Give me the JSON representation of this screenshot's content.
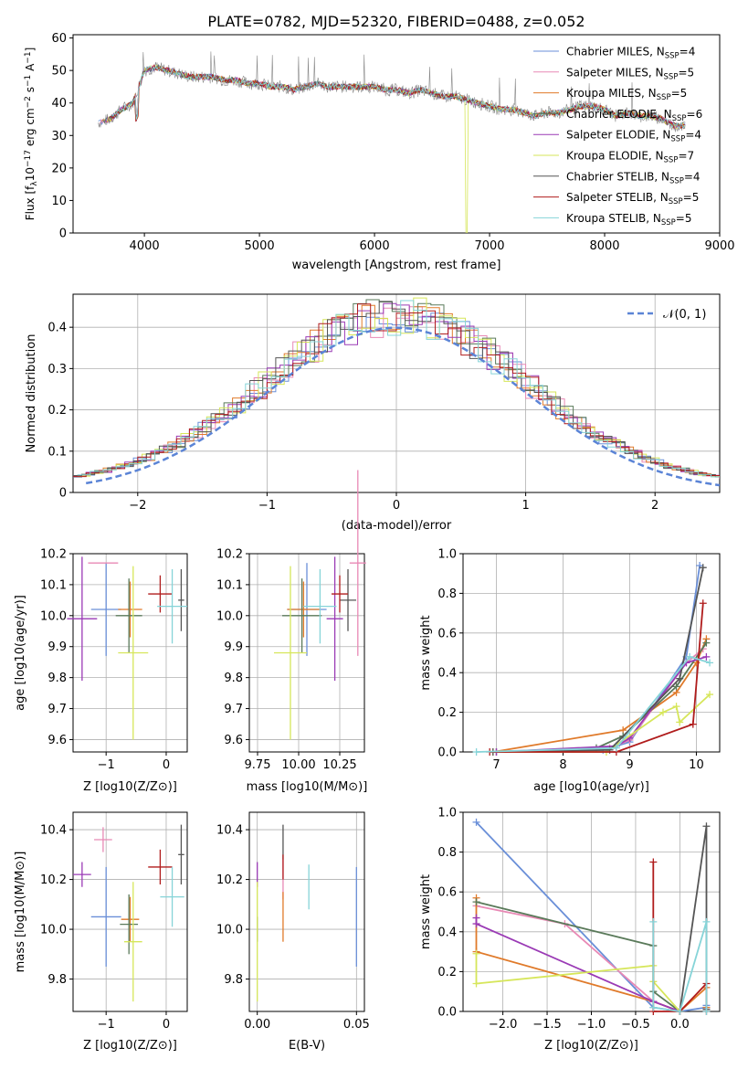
{
  "figure": {
    "title": "PLATE=0782, MJD=52320, FIBERID=0488, z=0.052",
    "colors": {
      "chabrier_miles": "#6a8fd8",
      "salpeter_miles": "#e889b5",
      "kroupa_miles": "#e07a2a",
      "chabrier_elodie": "#5a7a5a",
      "salpeter_elodie": "#9a3ab5",
      "kroupa_elodie": "#d6e65a",
      "chabrier_stelib": "#555555",
      "salpeter_stelib": "#b01c1c",
      "kroupa_stelib": "#86d4d8",
      "normal": "#5b84d6"
    }
  },
  "chart_data": [
    {
      "id": "spectrum",
      "type": "line",
      "title": "PLATE=0782, MJD=52320, FIBERID=0488, z=0.052",
      "xlabel": "wavelength [Angstrom, rest frame]",
      "ylabel": "Flux [f_λ10^-17 erg cm^-2 s^-1 A^-1]",
      "xlim": [
        3380,
        9000
      ],
      "ylim": [
        0,
        61
      ],
      "xticks": [
        4000,
        5000,
        6000,
        7000,
        8000,
        9000
      ],
      "yticks": [
        0,
        10,
        20,
        30,
        40,
        50,
        60
      ],
      "legend_position": "top-right",
      "grid": false,
      "series": [
        {
          "name": "Chabrier MILES, N_SSP=4",
          "key": "chabrier_miles"
        },
        {
          "name": "Salpeter MILES, N_SSP=5",
          "key": "salpeter_miles"
        },
        {
          "name": "Kroupa MILES, N_SSP=5",
          "key": "kroupa_miles"
        },
        {
          "name": "Chabrier ELODIE, N_SSP=6",
          "key": "chabrier_elodie"
        },
        {
          "name": "Salpeter ELODIE, N_SSP=4",
          "key": "salpeter_elodie"
        },
        {
          "name": "Kroupa ELODIE, N_SSP=7",
          "key": "kroupa_elodie"
        },
        {
          "name": "Chabrier STELIB, N_SSP=4",
          "key": "chabrier_stelib"
        },
        {
          "name": "Salpeter STELIB, N_SSP=5",
          "key": "salpeter_stelib"
        },
        {
          "name": "Kroupa STELIB, N_SSP=5",
          "key": "kroupa_stelib"
        }
      ],
      "observed_envelope": {
        "x": [
          3600,
          3700,
          3800,
          3900,
          4000,
          4100,
          4200,
          4300,
          4400,
          4500,
          4600,
          4700,
          4800,
          4900,
          5000,
          5100,
          5200,
          5300,
          5400,
          5500,
          5600,
          5700,
          5800,
          5900,
          6000,
          6100,
          6200,
          6300,
          6400,
          6500,
          6600,
          6700,
          6800,
          6900,
          7000,
          7100,
          7200,
          7300,
          7400,
          7500,
          7600,
          7700,
          7800,
          7900,
          8000,
          8100,
          8200,
          8300,
          8400,
          8500,
          8600,
          8700
        ],
        "y": [
          34,
          35,
          38,
          40,
          50,
          51,
          50,
          49,
          48,
          48,
          48,
          47,
          47,
          46,
          46,
          45,
          45,
          44,
          45,
          46,
          45,
          45,
          45,
          45,
          45,
          44,
          44,
          43,
          44,
          43,
          42,
          42,
          41,
          40,
          39,
          38,
          38,
          37,
          36,
          37,
          37,
          38,
          39,
          39,
          38,
          36,
          37,
          36,
          36,
          35,
          33,
          33
        ]
      }
    },
    {
      "id": "residuals",
      "type": "line",
      "xlabel": "(data-model)/error",
      "ylabel": "Normed distribution",
      "xlim": [
        -2.5,
        2.5
      ],
      "ylim": [
        0,
        0.48
      ],
      "xticks": [
        -2,
        -1,
        0,
        1,
        2
      ],
      "yticks": [
        0.0,
        0.1,
        0.2,
        0.3,
        0.4
      ],
      "legend_position": "top-right",
      "grid": true,
      "reference": {
        "name": "𝒩(0, 1)",
        "mean": 0,
        "sigma": 1
      },
      "histogram_bin_width": 0.1
    },
    {
      "id": "age_vs_z",
      "type": "scatter",
      "xlabel": "Z [log10(Z/Z⊙)]",
      "ylabel": "age [log10(age/yr)]",
      "xlim": [
        -1.55,
        0.35
      ],
      "ylim": [
        9.56,
        10.2
      ],
      "xticks": [
        -1,
        0
      ],
      "yticks": [
        9.6,
        9.7,
        9.8,
        9.9,
        10.0,
        10.1,
        10.2
      ],
      "grid": true,
      "points": [
        {
          "key": "chabrier_miles",
          "x": -1.0,
          "xerr": 0.25,
          "y": 10.02,
          "yerr": 0.15
        },
        {
          "key": "salpeter_miles",
          "x": -1.05,
          "xerr": 0.25,
          "y": 10.17,
          "yerr": 0.0
        },
        {
          "key": "kroupa_miles",
          "x": -0.6,
          "xerr": 0.2,
          "y": 10.02,
          "yerr": 0.09
        },
        {
          "key": "chabrier_elodie",
          "x": -0.62,
          "xerr": 0.22,
          "y": 10.0,
          "yerr": 0.12
        },
        {
          "key": "salpeter_elodie",
          "x": -1.4,
          "xerr": 0.25,
          "y": 9.99,
          "yerr": 0.2
        },
        {
          "key": "kroupa_elodie",
          "x": -0.55,
          "xerr": 0.25,
          "y": 9.88,
          "yerr": 0.28
        },
        {
          "key": "chabrier_stelib",
          "x": 0.25,
          "xerr": 0.05,
          "y": 10.05,
          "yerr": 0.1
        },
        {
          "key": "salpeter_stelib",
          "x": -0.1,
          "xerr": 0.2,
          "y": 10.07,
          "yerr": 0.06
        },
        {
          "key": "kroupa_stelib",
          "x": 0.1,
          "xerr": 0.25,
          "y": 10.03,
          "yerr": 0.12
        }
      ]
    },
    {
      "id": "age_vs_mass",
      "type": "scatter",
      "xlabel": "mass [log10(M/M⊙)]",
      "ylabel": "",
      "xlim": [
        9.7,
        10.4
      ],
      "ylim": [
        9.56,
        10.2
      ],
      "xticks": [
        9.75,
        10.0,
        10.25
      ],
      "xticklabels": [
        "9.75",
        "10.00",
        "10.25"
      ],
      "yticks": [
        9.6,
        9.7,
        9.8,
        9.9,
        10.0,
        10.1,
        10.2
      ],
      "grid": true,
      "points": [
        {
          "key": "chabrier_miles",
          "x": 10.05,
          "xerr": 0.12,
          "y": 10.02,
          "yerr": 0.15
        },
        {
          "key": "salpeter_miles",
          "x": 10.36,
          "xerr": 0.05,
          "y": 10.17,
          "yerr": 0.3
        },
        {
          "key": "kroupa_miles",
          "x": 10.03,
          "xerr": 0.1,
          "y": 10.02,
          "yerr": 0.09
        },
        {
          "key": "chabrier_elodie",
          "x": 10.02,
          "xerr": 0.12,
          "y": 10.0,
          "yerr": 0.12
        },
        {
          "key": "salpeter_elodie",
          "x": 10.22,
          "xerr": 0.05,
          "y": 9.99,
          "yerr": 0.2
        },
        {
          "key": "kroupa_elodie",
          "x": 9.95,
          "xerr": 0.1,
          "y": 9.88,
          "yerr": 0.28
        },
        {
          "key": "chabrier_stelib",
          "x": 10.3,
          "xerr": 0.05,
          "y": 10.05,
          "yerr": 0.1
        },
        {
          "key": "salpeter_stelib",
          "x": 10.25,
          "xerr": 0.05,
          "y": 10.07,
          "yerr": 0.06
        },
        {
          "key": "kroupa_stelib",
          "x": 10.13,
          "xerr": 0.1,
          "y": 10.03,
          "yerr": 0.12
        }
      ]
    },
    {
      "id": "weight_vs_age",
      "type": "line",
      "xlabel": "age [log10(age/yr)]",
      "ylabel": "mass weight",
      "xlim": [
        6.5,
        10.35
      ],
      "ylim": [
        0,
        1
      ],
      "xticks": [
        7,
        8,
        9,
        10
      ],
      "yticks": [
        0.0,
        0.2,
        0.4,
        0.6,
        0.8,
        1.0
      ],
      "grid": true,
      "series": [
        {
          "key": "chabrier_miles",
          "x": [
            6.95,
            8.6,
            9.0,
            9.85,
            10.05
          ],
          "y": [
            0.0,
            0.01,
            0.05,
            0.48,
            0.94
          ]
        },
        {
          "key": "salpeter_miles",
          "x": [
            7.0,
            8.7,
            9.0,
            9.85,
            10.1
          ],
          "y": [
            0.0,
            0.02,
            0.06,
            0.45,
            0.52
          ]
        },
        {
          "key": "kroupa_miles",
          "x": [
            6.95,
            8.9,
            9.7,
            10.0,
            10.15
          ],
          "y": [
            0.0,
            0.11,
            0.3,
            0.45,
            0.57
          ]
        },
        {
          "key": "chabrier_elodie",
          "x": [
            7.0,
            8.5,
            8.9,
            9.7,
            10.15
          ],
          "y": [
            0.0,
            0.02,
            0.08,
            0.33,
            0.55
          ]
        },
        {
          "key": "salpeter_elodie",
          "x": [
            7.0,
            8.8,
            9.0,
            9.85,
            10.15
          ],
          "y": [
            0.0,
            0.03,
            0.07,
            0.45,
            0.48
          ]
        },
        {
          "key": "kroupa_elodie",
          "x": [
            6.95,
            8.65,
            9.5,
            9.7,
            9.75,
            10.2
          ],
          "y": [
            0.0,
            0.0,
            0.2,
            0.23,
            0.15,
            0.29
          ]
        },
        {
          "key": "chabrier_stelib",
          "x": [
            6.95,
            8.7,
            9.75,
            10.1
          ],
          "y": [
            0.0,
            0.01,
            0.37,
            0.93
          ]
        },
        {
          "key": "salpeter_stelib",
          "x": [
            6.9,
            8.8,
            9.95,
            10.1
          ],
          "y": [
            0.0,
            0.0,
            0.14,
            0.75
          ]
        },
        {
          "key": "kroupa_stelib",
          "x": [
            6.7,
            8.8,
            9.9,
            10.2
          ],
          "y": [
            0.0,
            0.02,
            0.48,
            0.45
          ]
        }
      ]
    },
    {
      "id": "mass_vs_z",
      "type": "scatter",
      "xlabel": "Z [log10(Z/Z⊙)]",
      "ylabel": "mass [log10(M/M⊙)]",
      "xlim": [
        -1.55,
        0.35
      ],
      "ylim": [
        9.67,
        10.47
      ],
      "xticks": [
        -1,
        0
      ],
      "yticks": [
        9.8,
        10.0,
        10.2,
        10.4
      ],
      "grid": true,
      "points": [
        {
          "key": "chabrier_miles",
          "x": -1.0,
          "xerr": 0.25,
          "y": 10.05,
          "yerr": 0.2
        },
        {
          "key": "salpeter_miles",
          "x": -1.05,
          "xerr": 0.15,
          "y": 10.36,
          "yerr": 0.05
        },
        {
          "key": "kroupa_miles",
          "x": -0.6,
          "xerr": 0.15,
          "y": 10.04,
          "yerr": 0.09
        },
        {
          "key": "chabrier_elodie",
          "x": -0.62,
          "xerr": 0.15,
          "y": 10.02,
          "yerr": 0.12
        },
        {
          "key": "salpeter_elodie",
          "x": -1.4,
          "xerr": 0.15,
          "y": 10.22,
          "yerr": 0.05
        },
        {
          "key": "kroupa_elodie",
          "x": -0.55,
          "xerr": 0.15,
          "y": 9.95,
          "yerr": 0.24
        },
        {
          "key": "chabrier_stelib",
          "x": 0.25,
          "xerr": 0.05,
          "y": 10.3,
          "yerr": 0.12
        },
        {
          "key": "salpeter_stelib",
          "x": -0.1,
          "xerr": 0.2,
          "y": 10.25,
          "yerr": 0.07
        },
        {
          "key": "kroupa_stelib",
          "x": 0.1,
          "xerr": 0.2,
          "y": 10.13,
          "yerr": 0.12
        }
      ]
    },
    {
      "id": "mass_vs_ebv",
      "type": "scatter",
      "xlabel": "E(B-V)",
      "ylabel": "",
      "xlim": [
        -0.004,
        0.054
      ],
      "ylim": [
        9.67,
        10.47
      ],
      "xticks": [
        0.0,
        0.05
      ],
      "xticklabels": [
        "0.00",
        "0.05"
      ],
      "yticks": [
        9.8,
        10.0,
        10.2,
        10.4
      ],
      "grid": true,
      "points": [
        {
          "key": "chabrier_miles",
          "x": 0.05,
          "y": 10.05,
          "yerr": 0.2
        },
        {
          "key": "salpeter_miles",
          "x": 0.013,
          "y": 10.2,
          "yerr": 0.08
        },
        {
          "key": "kroupa_miles",
          "x": 0.013,
          "y": 10.05,
          "yerr": 0.1
        },
        {
          "key": "chabrier_elodie",
          "x": 0.0,
          "y": 10.0,
          "yerr": 0.05
        },
        {
          "key": "salpeter_elodie",
          "x": 0.0,
          "y": 10.22,
          "yerr": 0.05
        },
        {
          "key": "kroupa_elodie",
          "x": 0.0,
          "y": 9.95,
          "yerr": 0.24
        },
        {
          "key": "chabrier_stelib",
          "x": 0.013,
          "y": 10.35,
          "yerr": 0.07
        },
        {
          "key": "salpeter_stelib",
          "x": 0.013,
          "y": 10.25,
          "yerr": 0.05
        },
        {
          "key": "kroupa_stelib",
          "x": 0.026,
          "y": 10.17,
          "yerr": 0.09
        }
      ]
    },
    {
      "id": "weight_vs_z",
      "type": "line",
      "xlabel": "Z [log10(Z/Z⊙)]",
      "ylabel": "mass weight",
      "xlim": [
        -2.45,
        0.45
      ],
      "ylim": [
        0,
        1
      ],
      "xticks": [
        -2.0,
        -1.5,
        -1.0,
        -0.5,
        0.0
      ],
      "xticklabels": [
        "−2.0",
        "−1.5",
        "−1.0",
        "−0.5",
        "0.0"
      ],
      "yticks": [
        0.0,
        0.2,
        0.4,
        0.6,
        0.8,
        1.0
      ],
      "grid": true,
      "series": [
        {
          "key": "chabrier_miles",
          "x": [
            -2.3,
            -0.3,
            0.0,
            0.3,
            0.3
          ],
          "y": [
            0.95,
            0.02,
            0.0,
            0.02,
            0.03
          ]
        },
        {
          "key": "salpeter_miles",
          "x": [
            -2.3,
            -1.3,
            -0.3,
            0.0
          ],
          "y": [
            0.53,
            0.44,
            0.05,
            0.0
          ]
        },
        {
          "key": "kroupa_miles",
          "x": [
            -2.3,
            -2.3,
            -0.3,
            0.0,
            0.3,
            0.3
          ],
          "y": [
            0.57,
            0.3,
            0.05,
            0.0,
            0.12,
            0.02
          ]
        },
        {
          "key": "chabrier_elodie",
          "x": [
            -2.3,
            -0.3,
            -0.3,
            0.0
          ],
          "y": [
            0.55,
            0.33,
            0.1,
            0.0
          ]
        },
        {
          "key": "salpeter_elodie",
          "x": [
            -2.3,
            -2.3,
            -0.3,
            0.0
          ],
          "y": [
            0.47,
            0.44,
            0.05,
            0.0
          ]
        },
        {
          "key": "kroupa_elodie",
          "x": [
            -2.3,
            -2.3,
            -0.3,
            -0.3,
            0.0
          ],
          "y": [
            0.29,
            0.14,
            0.23,
            0.15,
            0.0
          ]
        },
        {
          "key": "chabrier_stelib",
          "x": [
            0.0,
            0.3,
            0.3
          ],
          "y": [
            0.0,
            0.93,
            0.01
          ]
        },
        {
          "key": "salpeter_stelib",
          "x": [
            -0.3,
            -0.3,
            0.0,
            0.3,
            0.3
          ],
          "y": [
            0.75,
            0.0,
            0.0,
            0.14,
            0.0
          ]
        },
        {
          "key": "kroupa_stelib",
          "x": [
            -0.3,
            -0.3,
            0.0,
            0.3,
            0.3
          ],
          "y": [
            0.45,
            0.02,
            0.0,
            0.45,
            0.0
          ]
        }
      ]
    }
  ]
}
